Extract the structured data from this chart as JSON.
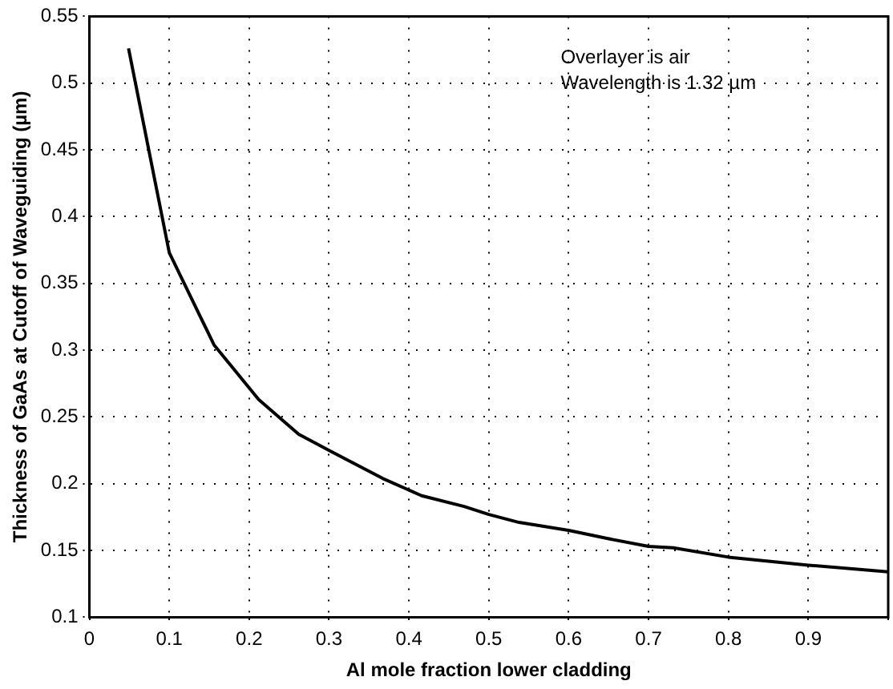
{
  "chart_data": {
    "type": "line",
    "xlabel": "Al mole fraction lower cladding",
    "ylabel": "Thickness of GaAs at Cutoff of Waveguiding (µm)",
    "annotations": [
      "Overlayer is air",
      "Wavelength is 1.32 µm"
    ],
    "series": [
      {
        "color": "#000000",
        "x": [
          0.049,
          0.1,
          0.156,
          0.212,
          0.262,
          0.303,
          0.367,
          0.416,
          0.469,
          0.5,
          0.538,
          0.6,
          0.648,
          0.7,
          0.731,
          0.8,
          0.9,
          1.0
        ],
        "values": [
          0.526,
          0.373,
          0.304,
          0.263,
          0.237,
          0.224,
          0.204,
          0.191,
          0.183,
          0.177,
          0.171,
          0.165,
          0.159,
          0.153,
          0.152,
          0.145,
          0.139,
          0.134
        ]
      }
    ],
    "xlim": [
      0,
      1
    ],
    "ylim": [
      0.1,
      0.55
    ],
    "xticks": [
      0,
      0.1,
      0.2,
      0.3,
      0.4,
      0.5,
      0.6,
      0.7,
      0.8,
      0.9,
      {
        "value": 1,
        "label": null
      }
    ],
    "yticks": [
      0.1,
      0.15,
      0.2,
      0.25,
      0.3,
      0.35,
      0.4,
      0.45,
      0.5,
      0.55
    ],
    "grid": true,
    "legend": false,
    "marker": "none",
    "line_style": "solid"
  }
}
